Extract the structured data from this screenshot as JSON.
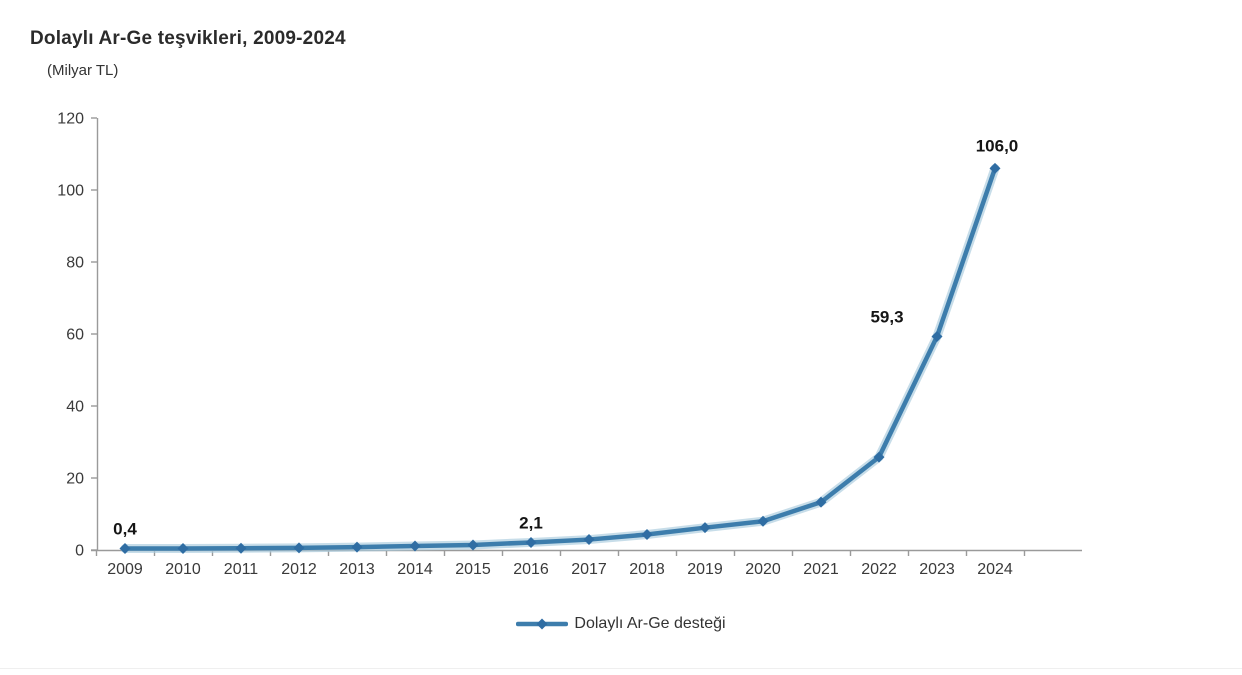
{
  "chart_data": {
    "type": "line",
    "title": "Dolaylı Ar-Ge teşvikleri, 2009-2024",
    "unit_label": "(Milyar TL)",
    "categories": [
      "2009",
      "2010",
      "2011",
      "2012",
      "2013",
      "2014",
      "2015",
      "2016",
      "2017",
      "2018",
      "2019",
      "2020",
      "2021",
      "2022",
      "2023",
      "2024"
    ],
    "series": [
      {
        "name": "Dolaylı Ar-Ge desteği",
        "values": [
          0.4,
          0.4,
          0.5,
          0.6,
          0.8,
          1.1,
          1.4,
          2.1,
          2.9,
          4.3,
          6.2,
          8.0,
          13.3,
          25.8,
          59.3,
          106.0
        ]
      }
    ],
    "point_labels": {
      "2009": "0,4",
      "2016": "2,1",
      "2023": "59,3",
      "2024": "106,0"
    },
    "y_ticks": [
      0,
      20,
      40,
      60,
      80,
      100,
      120
    ],
    "ylim": [
      0,
      120
    ],
    "grid": "off",
    "legend_position": "bottom-center",
    "legend_label": "Dolaylı Ar-Ge desteği",
    "colors": {
      "line": "#3d7dac",
      "line_halo": "#a9cbdd",
      "marker": "#2f6da3",
      "axis": "#9a9a9a",
      "tick_text": "#3a3a3a",
      "point_label_text": "#151515",
      "title_text": "#2b2b2b"
    }
  }
}
